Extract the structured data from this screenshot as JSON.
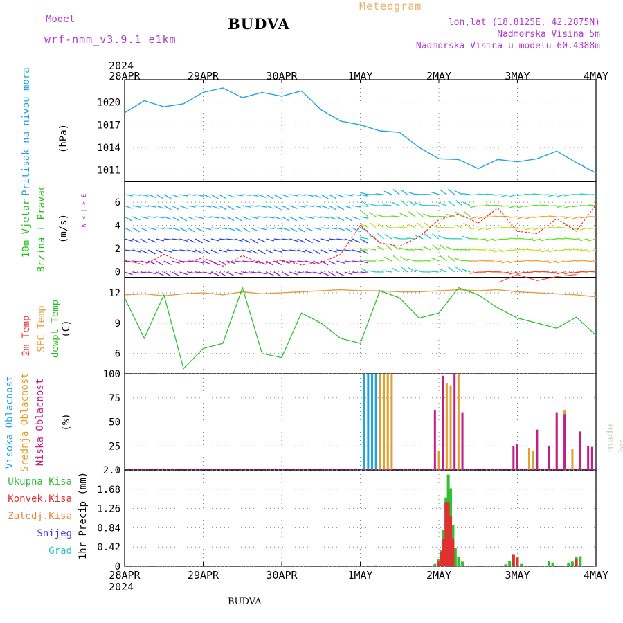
{
  "header": {
    "model_label": "Model",
    "model_value": "wrf-nmm_v3.9.1 e1km",
    "title": "BUDVA",
    "meteogram": "Meteogram",
    "lonlat": "lon,lat (18.8125E, 42.2875N)",
    "elevation": "Nadmorska Visina 5m",
    "model_elevation": "Nadmorska Visina u modelu 60.4388m",
    "bottom_title": "BUDVA",
    "credit": "made by Angel"
  },
  "colors": {
    "pressure": "#1fa3e0",
    "wind_speed_line": "#ff2020",
    "temp_2m": "#ff3333",
    "temp_sfc": "#e0a040",
    "dewpoint": "#20c020",
    "cloud_high": "#1fa3e0",
    "cloud_mid": "#e0a030",
    "cloud_low": "#c0208a",
    "precip_total": "#30c030",
    "precip_conv": "#e03030",
    "precip_frozen": "#f08030",
    "snow": "#4040e0",
    "graupel": "#30c0c0"
  },
  "chart_data": [
    {
      "type": "line",
      "panel": "pressure",
      "ylabel": [
        "Pritisak na nivou mora",
        "(hPa)"
      ],
      "x_ticks": [
        "28APR",
        "29APR",
        "30APR",
        "1MAY",
        "2MAY",
        "3MAY",
        "4MAY"
      ],
      "x_top_year": "2024",
      "ylim": [
        1009.5,
        1023
      ],
      "yticks": [
        1011,
        1014,
        1017,
        1020
      ],
      "x": [
        0,
        0.25,
        0.5,
        0.75,
        1.0,
        1.25,
        1.5,
        1.75,
        2.0,
        2.25,
        2.5,
        2.75,
        3.0,
        3.25,
        3.5,
        3.75,
        4.0,
        4.25,
        4.5,
        4.75,
        5.0,
        5.25,
        5.5,
        5.75,
        6.0
      ],
      "series": [
        {
          "values": [
            1018.6,
            1020.2,
            1019.4,
            1019.8,
            1021.3,
            1021.9,
            1020.6,
            1021.3,
            1020.8,
            1021.5,
            1019.0,
            1017.5,
            1017.0,
            1016.2,
            1016.0,
            1014.0,
            1012.5,
            1012.4,
            1011.2,
            1012.4,
            1012.1,
            1012.5,
            1013.5,
            1012.0,
            1010.6
          ]
        }
      ]
    },
    {
      "type": "line",
      "panel": "wind",
      "ylabel": [
        "10m Vjetar",
        "Brzina i Pravac",
        "(m/s)"
      ],
      "compass": "W <-|-> E",
      "ylim": [
        -0.5,
        7.8
      ],
      "yticks": [
        0,
        2,
        4,
        6
      ],
      "x": [
        0,
        0.25,
        0.5,
        0.75,
        1.0,
        1.25,
        1.5,
        1.75,
        2.0,
        2.25,
        2.5,
        2.75,
        3.0,
        3.25,
        3.5,
        3.75,
        4.0,
        4.25,
        4.5,
        4.75,
        5.0,
        5.25,
        5.5,
        5.75,
        6.0
      ],
      "series": [
        {
          "name": "speed",
          "values": [
            1.0,
            0.6,
            1.5,
            0.8,
            1.2,
            0.5,
            1.4,
            0.7,
            1.0,
            0.6,
            0.8,
            1.5,
            4.0,
            2.5,
            2.2,
            3.0,
            4.5,
            5.0,
            4.2,
            5.5,
            3.5,
            3.3,
            4.6,
            3.5,
            5.8
          ]
        }
      ]
    },
    {
      "type": "line",
      "panel": "temperature",
      "ylabel": [
        "2m Temp",
        "SFC Temp",
        "dewpt Temp",
        "(C)"
      ],
      "ylim": [
        4,
        13.5
      ],
      "yticks": [
        6,
        9,
        12
      ],
      "x": [
        0,
        0.25,
        0.5,
        0.75,
        1.0,
        1.25,
        1.5,
        1.75,
        2.0,
        2.25,
        2.5,
        2.75,
        3.0,
        3.25,
        3.5,
        3.75,
        4.0,
        4.25,
        4.5,
        4.75,
        5.0,
        5.25,
        5.5,
        5.75,
        6.0
      ],
      "series": [
        {
          "name": "2m Temp",
          "values": [
            null,
            null,
            null,
            null,
            null,
            null,
            null,
            null,
            null,
            null,
            null,
            null,
            null,
            null,
            null,
            null,
            null,
            null,
            null,
            13.0,
            13.8,
            13.2,
            13.6,
            13.8,
            null
          ]
        },
        {
          "name": "SFC Temp",
          "values": [
            11.8,
            11.9,
            11.7,
            11.9,
            12.0,
            11.8,
            12.1,
            11.9,
            12.0,
            12.1,
            12.2,
            12.3,
            12.2,
            12.2,
            12.1,
            12.1,
            12.2,
            12.3,
            12.2,
            12.3,
            12.1,
            12.0,
            11.9,
            11.8,
            11.6
          ]
        },
        {
          "name": "dewpt Temp",
          "values": [
            11.5,
            7.5,
            11.8,
            4.5,
            6.5,
            7.0,
            12.5,
            6.0,
            5.6,
            10.0,
            9.0,
            7.5,
            7.0,
            12.2,
            11.5,
            9.5,
            10.0,
            12.5,
            11.8,
            10.5,
            9.5,
            9.0,
            8.5,
            9.6,
            7.8
          ]
        }
      ]
    },
    {
      "type": "bar",
      "panel": "clouds",
      "ylabel": [
        "Visoka Oblacnost",
        "Srednja Oblacnost",
        "Niska Oblacnost",
        "(%)"
      ],
      "ylim": [
        0,
        100
      ],
      "yticks": [
        0,
        25,
        50,
        75,
        100
      ],
      "series": [
        {
          "name": "Visoka Oblacnost",
          "x": [
            3.05,
            3.1,
            3.15,
            3.2
          ],
          "values": [
            100,
            100,
            100,
            100
          ]
        },
        {
          "name": "Srednja Oblacnost",
          "x": [
            3.25,
            3.3,
            3.35,
            3.4,
            4.0,
            4.1,
            4.15,
            4.25,
            4.3,
            5.15,
            5.2,
            5.5,
            5.6,
            5.7
          ],
          "values": [
            100,
            100,
            100,
            100,
            20,
            90,
            88,
            100,
            60,
            23,
            20,
            55,
            62,
            22
          ]
        },
        {
          "name": "Niska Oblacnost",
          "x": [
            3.95,
            4.05,
            4.2,
            4.3,
            4.95,
            5.0,
            5.25,
            5.4,
            5.5,
            5.6,
            5.8,
            5.9,
            5.95
          ],
          "values": [
            62,
            98,
            100,
            60,
            25,
            27,
            42,
            25,
            60,
            58,
            40,
            25,
            24
          ]
        }
      ]
    },
    {
      "type": "bar",
      "panel": "precip",
      "ylabel": [
        "1hr Precip (mm)"
      ],
      "legend": [
        "Ukupna Kisa",
        "Konvek.Kisa",
        "Zaledj.Kisa",
        "Snijeg",
        "Grad"
      ],
      "ylim": [
        0,
        2.1
      ],
      "yticks": [
        0,
        0.42,
        0.84,
        1.26,
        1.68,
        2.1
      ],
      "x_ticks": [
        "28APR",
        "29APR",
        "30APR",
        "1MAY",
        "2MAY",
        "3MAY",
        "4MAY"
      ],
      "x_bottom_year": "2024",
      "series": [
        {
          "name": "Ukupna Kisa",
          "x": [
            3.2,
            3.95,
            4.0,
            4.03,
            4.06,
            4.09,
            4.12,
            4.15,
            4.18,
            4.21,
            4.25,
            4.3,
            4.85,
            4.9,
            4.95,
            5.0,
            5.05,
            5.4,
            5.45,
            5.65,
            5.7,
            5.75,
            5.8
          ],
          "values": [
            0.02,
            0.05,
            0.15,
            0.35,
            0.8,
            1.5,
            2.0,
            1.7,
            0.9,
            0.4,
            0.2,
            0.1,
            0.04,
            0.12,
            0.25,
            0.2,
            0.05,
            0.12,
            0.08,
            0.06,
            0.1,
            0.2,
            0.22
          ]
        },
        {
          "name": "Konvek.Kisa",
          "x": [
            4.0,
            4.03,
            4.06,
            4.09,
            4.12,
            4.15,
            4.18,
            4.95,
            5.0,
            5.75
          ],
          "values": [
            0.1,
            0.3,
            0.6,
            1.4,
            1.4,
            1.1,
            0.6,
            0.25,
            0.18,
            0.15
          ]
        }
      ]
    }
  ]
}
